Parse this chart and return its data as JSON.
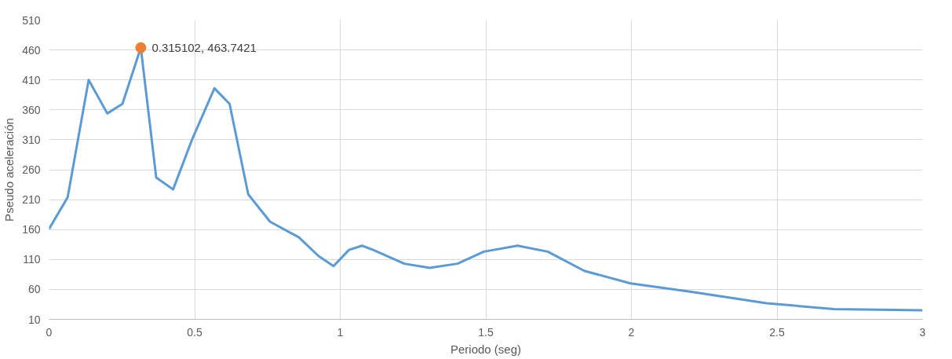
{
  "chart_data": {
    "type": "line",
    "xlabel": "Periodo (seg)",
    "ylabel": "Pseudo aceleración",
    "xlim": [
      0,
      3
    ],
    "ylim": [
      10,
      510
    ],
    "xticks": [
      0,
      0.5,
      1,
      1.5,
      2,
      2.5,
      3
    ],
    "yticks": [
      10,
      60,
      110,
      160,
      210,
      260,
      310,
      360,
      410,
      460,
      510
    ],
    "grid": true,
    "line_style": "solid",
    "series": [
      {
        "color": "#5b9bd5",
        "marker": "none",
        "x": [
          0,
          0.064,
          0.136,
          0.2,
          0.252,
          0.315102,
          0.368,
          0.426,
          0.49,
          0.568,
          0.62,
          0.684,
          0.759,
          0.858,
          0.925,
          0.977,
          1.03,
          1.075,
          1.113,
          1.22,
          1.307,
          1.403,
          1.493,
          1.609,
          1.713,
          1.838,
          1.997,
          2.206,
          2.464,
          2.696,
          3
        ],
        "values": [
          161,
          214,
          410,
          354,
          370,
          463.7421,
          247,
          227,
          309,
          396,
          370,
          219,
          173,
          147,
          116,
          99,
          126,
          133,
          126,
          103,
          96,
          103,
          123,
          133,
          123,
          91,
          70,
          56,
          37,
          27,
          25
        ]
      },
      {
        "type": "scatter",
        "color": "#ed7d31",
        "marker": "circle",
        "x": [
          0.315102
        ],
        "values": [
          463.7421
        ]
      }
    ],
    "annotations": [
      {
        "text": "0.315102, 463.7421",
        "x": 0.315102,
        "y": 463.7421
      }
    ]
  }
}
